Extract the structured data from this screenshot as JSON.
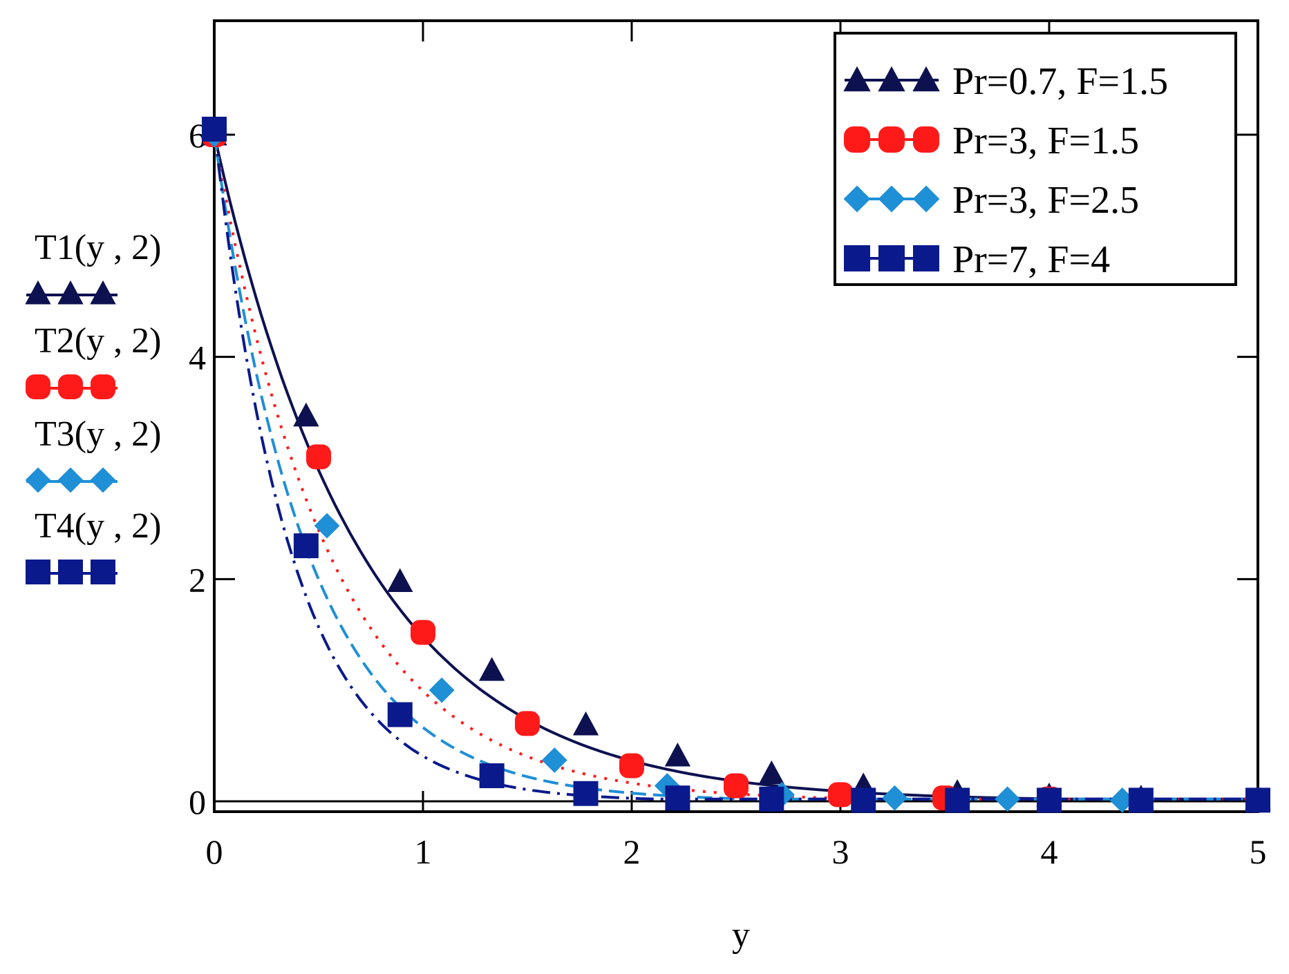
{
  "chart_data": {
    "type": "line",
    "xlabel": "y",
    "ylabels": [
      "T1(y , 2)",
      "T2(y , 2)",
      "T3(y , 2)",
      "T4(y , 2)"
    ],
    "xlim": [
      0,
      5
    ],
    "ylim": [
      0,
      6
    ],
    "ymax_visible": 7,
    "xticks": [
      "0",
      "1",
      "2",
      "3",
      "4",
      "5"
    ],
    "yticks": [
      "0",
      "2",
      "4",
      "6"
    ],
    "grid": false,
    "legend_position": "top-right",
    "series": [
      {
        "name": "Pr=0.7, F=1.5",
        "ylabel": "T1(y , 2)",
        "color": "#0d1150",
        "marker": "triangle",
        "line": "solid",
        "decay": 1.4,
        "points": [
          [
            0,
            6.0
          ],
          [
            0.44,
            3.47
          ],
          [
            0.89,
            1.98
          ],
          [
            1.33,
            1.18
          ],
          [
            1.78,
            0.69
          ],
          [
            2.22,
            0.41
          ],
          [
            2.67,
            0.25
          ],
          [
            3.11,
            0.14
          ],
          [
            3.56,
            0.08
          ],
          [
            4.0,
            0.05
          ],
          [
            4.44,
            0.03
          ],
          [
            5.0,
            0.02
          ]
        ]
      },
      {
        "name": "Pr=3, F=1.5",
        "ylabel": "T2(y , 2)",
        "color": "#ff1a1a",
        "marker": "circle",
        "line": "dotted",
        "decay": 1.8,
        "points": [
          [
            0,
            6.0
          ],
          [
            0.5,
            3.1
          ],
          [
            1.0,
            1.52
          ],
          [
            1.5,
            0.7
          ],
          [
            2.0,
            0.32
          ],
          [
            2.5,
            0.14
          ],
          [
            3.0,
            0.06
          ],
          [
            3.5,
            0.03
          ],
          [
            4.0,
            0.02
          ],
          [
            5.0,
            0.01
          ]
        ]
      },
      {
        "name": "Pr=3, F=2.5",
        "ylabel": "T3(y , 2)",
        "color": "#1f8fd6",
        "marker": "diamond",
        "line": "dashed",
        "decay": 2.2,
        "points": [
          [
            0,
            6.0
          ],
          [
            0.54,
            2.48
          ],
          [
            1.09,
            1.0
          ],
          [
            1.63,
            0.37
          ],
          [
            2.17,
            0.14
          ],
          [
            2.72,
            0.06
          ],
          [
            3.26,
            0.03
          ],
          [
            3.8,
            0.02
          ],
          [
            4.35,
            0.01
          ],
          [
            5.0,
            0.01
          ]
        ]
      },
      {
        "name": "Pr=7, F=4",
        "ylabel": "T4(y , 2)",
        "color": "#0a1a8c",
        "marker": "square",
        "line": "dashdot",
        "decay": 2.7,
        "points": [
          [
            0,
            6.05
          ],
          [
            0.44,
            2.3
          ],
          [
            0.89,
            0.78
          ],
          [
            1.33,
            0.23
          ],
          [
            1.78,
            0.07
          ],
          [
            2.22,
            0.03
          ],
          [
            2.67,
            0.02
          ],
          [
            3.11,
            0.01
          ],
          [
            3.56,
            0.01
          ],
          [
            4.0,
            0.01
          ],
          [
            4.44,
            0.01
          ],
          [
            5.0,
            0.01
          ]
        ]
      }
    ]
  }
}
